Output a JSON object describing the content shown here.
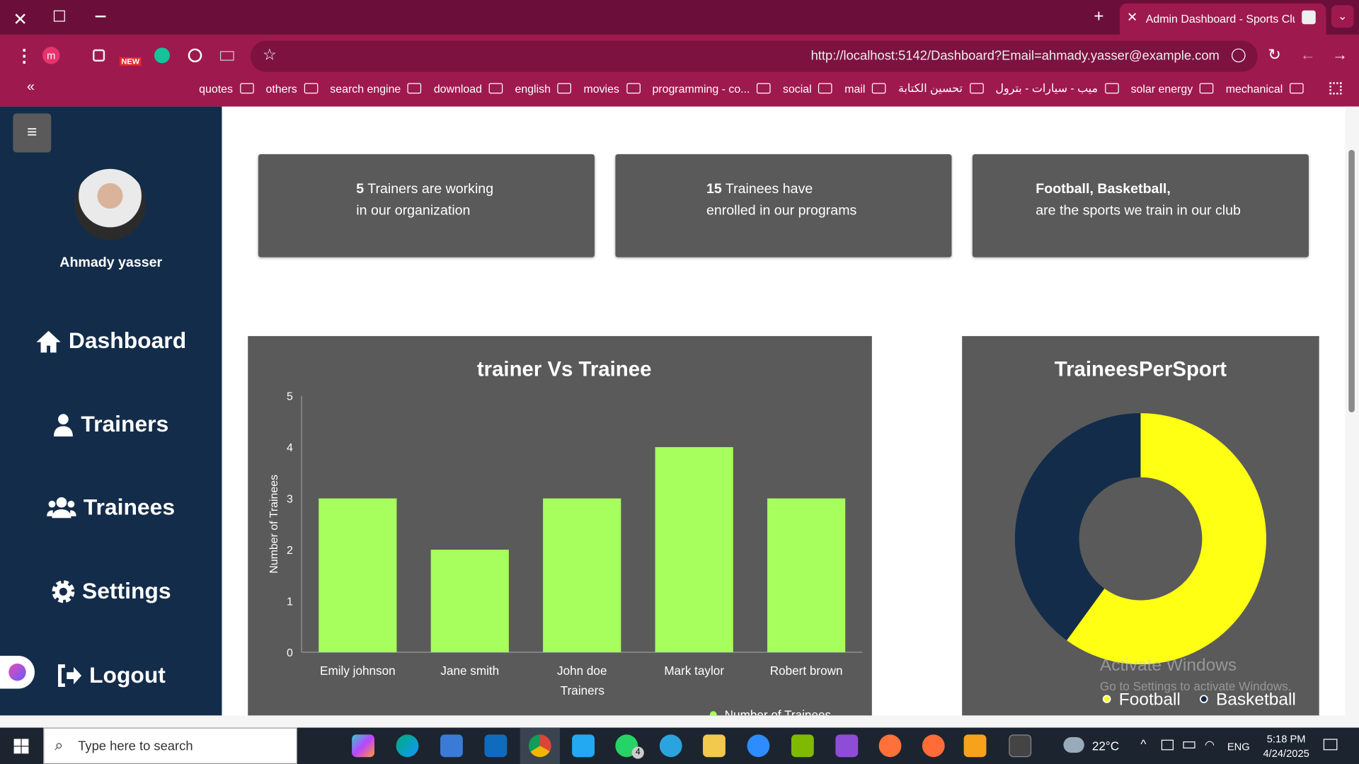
{
  "browser": {
    "tab_title": "Admin Dashboard - Sports Club",
    "url": "http://localhost:5142/Dashboard?Email=ahmady.yasser@example.com",
    "ext_badge": "NEW",
    "bookmarks": [
      "quotes",
      "others",
      "search engine",
      "download",
      "english",
      "movies",
      "programming - co...",
      "social",
      "mail",
      "تحسين الكتابة",
      "ميب - سيارات - بترول",
      "solar energy",
      "mechanical"
    ]
  },
  "sidebar": {
    "user_name": "Ahmady yasser",
    "nav": [
      "Dashboard",
      "Trainers",
      "Trainees",
      "Settings",
      "Logout"
    ]
  },
  "cards": [
    {
      "bold": "5",
      "line1": "Trainers are working",
      "line2": "in our organization"
    },
    {
      "bold": "15",
      "line1": "Trainees have",
      "line2": "enrolled in our programs"
    },
    {
      "bold": "Football, Basketball,",
      "line2": "are the sports we train in our club"
    }
  ],
  "chart_data": [
    {
      "type": "bar",
      "title": "trainer Vs Trainee",
      "categories": [
        "Emily johnson",
        "Jane smith",
        "John doe",
        "Mark taylor",
        "Robert brown"
      ],
      "series": [
        {
          "name": "Number of Trainees",
          "color": "#a6ff5c",
          "values": [
            3,
            2,
            3,
            4,
            3
          ]
        }
      ],
      "x_label": "Trainers",
      "y_label": "Number of Trainees",
      "ylim": [
        0,
        5
      ],
      "yticks": [
        0,
        1,
        2,
        3,
        4,
        5
      ],
      "grid": false
    },
    {
      "type": "pie",
      "title": "TraineesPerSport",
      "categories": [
        "Football",
        "Basketball"
      ],
      "values": [
        9,
        6
      ],
      "colors": [
        "#ffff14",
        "#132c4a"
      ]
    }
  ],
  "watermark": {
    "line1": "Activate Windows",
    "line2": "Go to Settings to activate Windows."
  },
  "taskbar": {
    "search": "Type here to search",
    "badge": "4",
    "weather": "22°C",
    "lang": "ENG",
    "time": "5:18 PM",
    "date": "4/24/2025"
  }
}
